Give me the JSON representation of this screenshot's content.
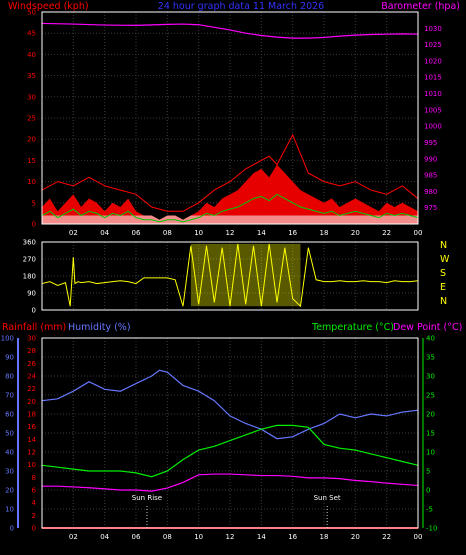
{
  "title": "24 hour graph data 11 March 2026",
  "colors": {
    "grid": "#3a3a3a",
    "frame": "#ffffff",
    "wind_avg": "#ff0000",
    "wind_gust": "#ff0000",
    "wind_fill": "#ff0000",
    "wind_low": "#ffffff",
    "wind_line": "#00cc00",
    "barometer": "#ff00ff",
    "direction": "#ffff00",
    "rain": "#ff0000",
    "humidity": "#6677ff",
    "temperature": "#00ee00",
    "dewpoint": "#ff00ff",
    "sun_marker": "#cccccc",
    "compass": "#ffff00"
  },
  "chart_data": [
    {
      "type": "area",
      "title": "24 hour graph data 11 March 2026",
      "left_axis_label": "Windspeed (kph)",
      "right_axis_label": "Barometer (hpa)",
      "x_ticks": [
        "02",
        "04",
        "06",
        "08",
        "10",
        "12",
        "14",
        "16",
        "18",
        "20",
        "22",
        "00"
      ],
      "x_hours": [
        2,
        4,
        6,
        8,
        10,
        12,
        14,
        16,
        18,
        20,
        22,
        24
      ],
      "xlim": [
        0,
        24
      ],
      "ylim": [
        0,
        50
      ],
      "y_ticks": [
        0,
        5,
        10,
        15,
        20,
        25,
        30,
        35,
        40,
        45,
        50
      ],
      "y2lim": [
        970,
        1035
      ],
      "y2_ticks": [
        975,
        980,
        985,
        990,
        995,
        1000,
        1005,
        1010,
        1015,
        1020,
        1025,
        1030
      ],
      "series": [
        {
          "name": "Windspeed",
          "x": [
            0,
            0.5,
            1,
            1.5,
            2,
            2.5,
            3,
            3.5,
            4,
            4.5,
            5,
            5.5,
            6,
            6.5,
            7,
            7.5,
            8,
            8.5,
            9,
            9.5,
            10,
            10.5,
            11,
            11.5,
            12,
            12.5,
            13,
            13.5,
            14,
            14.5,
            15,
            15.5,
            16,
            16.5,
            17,
            17.5,
            18,
            18.5,
            19,
            19.5,
            20,
            20.5,
            21,
            21.5,
            22,
            22.5,
            23,
            23.5,
            24
          ],
          "y": [
            4,
            6,
            3,
            5,
            7,
            4,
            6,
            5,
            3,
            5,
            4,
            6,
            3,
            2,
            2,
            1,
            2,
            2,
            1,
            2,
            3,
            5,
            4,
            6,
            7,
            8,
            10,
            12,
            13,
            11,
            14,
            12,
            10,
            8,
            7,
            6,
            5,
            6,
            4,
            5,
            6,
            5,
            4,
            3,
            5,
            4,
            5,
            4,
            3
          ]
        },
        {
          "name": "Wind gust",
          "x": [
            0,
            1,
            2,
            3,
            4,
            5,
            6,
            7,
            8,
            9,
            10,
            11,
            12,
            13,
            14,
            14.5,
            15,
            16,
            17,
            18,
            19,
            20,
            21,
            22,
            23,
            24
          ],
          "y": [
            8,
            10,
            9,
            11,
            9,
            8,
            7,
            4,
            3,
            3,
            5,
            8,
            10,
            13,
            15,
            16,
            14,
            21,
            12,
            10,
            9,
            10,
            8,
            7,
            9,
            6
          ]
        },
        {
          "name": "Barometer",
          "axis": "right",
          "x": [
            0,
            2,
            4,
            6,
            8,
            9,
            10,
            11,
            12,
            13,
            14,
            15,
            16,
            17,
            18,
            19,
            20,
            21,
            22,
            23,
            24
          ],
          "y": [
            1031.5,
            1031.3,
            1031.0,
            1030.9,
            1031.2,
            1031.3,
            1031.1,
            1030.3,
            1029.5,
            1028.5,
            1027.8,
            1027.3,
            1027.0,
            1027.0,
            1027.2,
            1027.6,
            1027.9,
            1028.1,
            1028.2,
            1028.3,
            1028.2
          ]
        }
      ]
    },
    {
      "type": "line",
      "title": "",
      "x_ticks": [
        "02",
        "04",
        "06",
        "08",
        "10",
        "12",
        "14",
        "16",
        "18",
        "20",
        "22",
        "00"
      ],
      "xlim": [
        0,
        24
      ],
      "ylim": [
        0,
        360
      ],
      "y_ticks": [
        0,
        90,
        180,
        270,
        360
      ],
      "compass_labels": [
        "N",
        "W",
        "S",
        "E",
        "N"
      ],
      "series": [
        {
          "name": "Wind direction",
          "x": [
            0,
            0.5,
            1,
            1.5,
            1.8,
            2,
            2.1,
            2.3,
            2.5,
            3,
            3.5,
            4,
            4.5,
            5,
            5.5,
            6,
            6.5,
            7,
            7.5,
            8,
            8.5,
            9,
            9.5,
            10,
            10.5,
            11,
            11.5,
            12,
            12.5,
            13,
            13.5,
            14,
            14.5,
            15,
            15.5,
            16,
            16.5,
            17,
            17.5,
            18,
            18.5,
            19,
            19.5,
            20,
            20.5,
            21,
            21.5,
            22,
            22.5,
            23,
            23.5,
            24
          ],
          "y": [
            140,
            150,
            130,
            145,
            20,
            280,
            140,
            150,
            145,
            150,
            140,
            145,
            150,
            155,
            150,
            140,
            170,
            170,
            170,
            170,
            160,
            20,
            340,
            30,
            340,
            40,
            330,
            20,
            350,
            30,
            340,
            20,
            350,
            40,
            330,
            60,
            20,
            330,
            160,
            150,
            150,
            155,
            150,
            150,
            155,
            150,
            150,
            145,
            155,
            150,
            150,
            155
          ]
        }
      ]
    },
    {
      "type": "line",
      "title": "",
      "left_axis_labels": [
        "Rainfall (mm)",
        "Humidity (%)"
      ],
      "right_axis_labels": [
        "Temperature (°C)",
        "Dew Point (°C)"
      ],
      "x_ticks": [
        "02",
        "04",
        "06",
        "08",
        "10",
        "12",
        "14",
        "16",
        "18",
        "20",
        "22",
        "00"
      ],
      "xlim": [
        0,
        24
      ],
      "humidity_ticks": [
        0,
        10,
        20,
        30,
        40,
        50,
        60,
        70,
        80,
        90,
        100
      ],
      "rain_ticks": [
        0,
        2,
        4,
        6,
        8,
        10,
        12,
        14,
        16,
        18,
        20,
        22,
        24,
        26,
        28,
        30
      ],
      "temp_ticks": [
        -10,
        -5,
        0,
        5,
        10,
        15,
        20,
        25,
        30,
        35,
        40
      ],
      "temp_lim": [
        -10,
        40
      ],
      "annotations": [
        {
          "label": "Sun Rise",
          "hour": 6.7
        },
        {
          "label": "Sun Set",
          "hour": 18.2
        }
      ],
      "series": [
        {
          "name": "Humidity",
          "axis": "humidity",
          "x": [
            0,
            1,
            2,
            3,
            4,
            5,
            6,
            7,
            7.5,
            8,
            9,
            10,
            11,
            12,
            13,
            14,
            15,
            16,
            17,
            18,
            19,
            20,
            21,
            22,
            23,
            24
          ],
          "y": [
            67,
            68,
            72,
            77,
            73,
            72,
            76,
            80,
            83,
            82,
            75,
            72,
            67,
            59,
            55,
            52,
            47,
            48,
            52,
            55,
            60,
            58,
            60,
            59,
            61,
            62
          ]
        },
        {
          "name": "Temperature",
          "axis": "temperature",
          "x": [
            0,
            1,
            2,
            3,
            4,
            5,
            6,
            7,
            8,
            9,
            10,
            11,
            12,
            13,
            14,
            15,
            16,
            17,
            18,
            19,
            20,
            21,
            22,
            23,
            24
          ],
          "y": [
            6.5,
            6,
            5.5,
            5,
            5,
            5,
            4.5,
            3.5,
            5,
            8,
            10.5,
            11.5,
            13,
            14.5,
            16,
            17,
            17,
            16.5,
            12,
            11,
            10.5,
            9.5,
            8.5,
            7.5,
            6.5
          ]
        },
        {
          "name": "Dew Point",
          "axis": "temperature",
          "x": [
            0,
            1,
            2,
            3,
            4,
            5,
            6,
            7,
            8,
            9,
            10,
            11,
            12,
            13,
            14,
            15,
            16,
            17,
            18,
            19,
            20,
            21,
            22,
            23,
            24
          ],
          "y": [
            1,
            1,
            0.8,
            0.6,
            0.3,
            0,
            0,
            -0.3,
            0.5,
            2,
            4,
            4.2,
            4.2,
            4,
            3.8,
            3.8,
            3.6,
            3.2,
            3.2,
            3,
            2.5,
            2.2,
            1.8,
            1.5,
            1.2
          ]
        },
        {
          "name": "Rainfall",
          "axis": "rain",
          "x": [
            0,
            24
          ],
          "y": [
            0,
            0
          ]
        }
      ]
    }
  ]
}
